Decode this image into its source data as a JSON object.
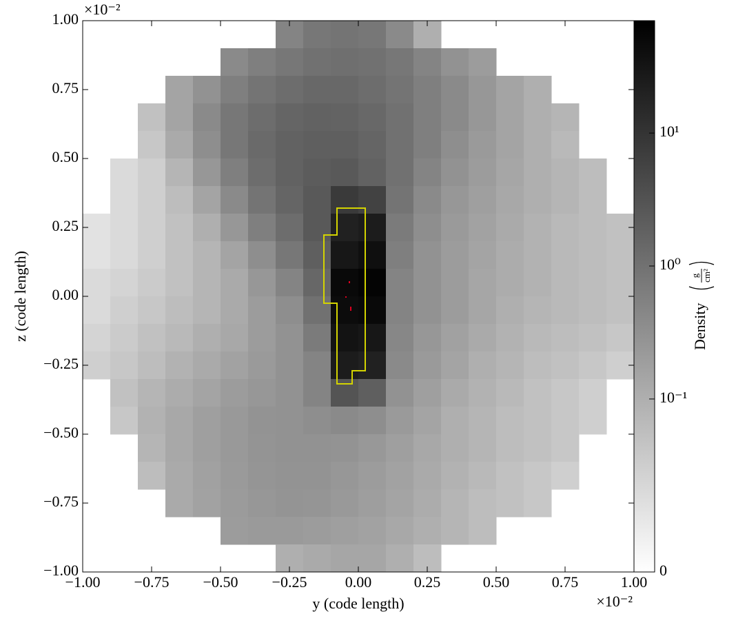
{
  "chart_data": {
    "type": "heatmap",
    "xlabel": "y  (code length)",
    "ylabel": "z  (code length)",
    "x_offset": "×10⁻²",
    "y_offset": "×10⁻²",
    "xlim": [
      -0.01,
      0.01
    ],
    "ylim": [
      -0.01,
      0.01
    ],
    "xticks": [
      {
        "value": -0.01,
        "label": "−1.00"
      },
      {
        "value": -0.0075,
        "label": "−0.75"
      },
      {
        "value": -0.005,
        "label": "−0.50"
      },
      {
        "value": -0.0025,
        "label": "−0.25"
      },
      {
        "value": 0,
        "label": "0.00"
      },
      {
        "value": 0.0025,
        "label": "0.25"
      },
      {
        "value": 0.005,
        "label": "0.50"
      },
      {
        "value": 0.0075,
        "label": "0.75"
      },
      {
        "value": 0.01,
        "label": "1.00"
      }
    ],
    "yticks": [
      {
        "value": -0.01,
        "label": "−1.00"
      },
      {
        "value": -0.0075,
        "label": "−0.75"
      },
      {
        "value": -0.005,
        "label": "−0.50"
      },
      {
        "value": -0.0025,
        "label": "−0.25"
      },
      {
        "value": 0,
        "label": "0.00"
      },
      {
        "value": 0.0025,
        "label": "0.25"
      },
      {
        "value": 0.005,
        "label": "0.50"
      },
      {
        "value": 0.0075,
        "label": "0.75"
      },
      {
        "value": 0.01,
        "label": "1.00"
      }
    ],
    "colormap": [
      "#ffffff",
      "#000000"
    ],
    "colorbar": {
      "scale": "log",
      "label": "Density",
      "units_num": "g",
      "units_den": "cm²",
      "lim": [
        0.005,
        70
      ],
      "ticks": [
        {
          "value": 0.005,
          "label": "0"
        },
        {
          "value": 0.1,
          "label": "10⁻¹"
        },
        {
          "value": 1,
          "label": "10⁰"
        },
        {
          "value": 10,
          "label": "10¹"
        }
      ]
    },
    "values": [
      [
        null,
        null,
        null,
        null,
        null,
        null,
        null,
        0.5,
        0.8,
        0.9,
        0.8,
        0.4,
        0.1,
        null,
        null,
        null,
        null,
        null,
        null,
        null
      ],
      [
        null,
        null,
        null,
        null,
        null,
        0.4,
        0.6,
        0.8,
        1.0,
        1.1,
        1.0,
        0.8,
        0.5,
        0.3,
        0.2,
        null,
        null,
        null,
        null,
        null
      ],
      [
        null,
        null,
        null,
        0.15,
        0.3,
        0.6,
        0.9,
        1.2,
        1.4,
        1.4,
        1.2,
        0.9,
        0.6,
        0.4,
        0.25,
        0.15,
        0.1,
        null,
        null,
        null
      ],
      [
        null,
        null,
        0.05,
        0.15,
        0.4,
        0.8,
        1.2,
        1.6,
        1.8,
        1.7,
        1.4,
        1.0,
        0.6,
        0.4,
        0.25,
        0.15,
        0.1,
        0.08,
        null,
        null
      ],
      [
        null,
        null,
        0.04,
        0.12,
        0.35,
        0.8,
        1.3,
        1.8,
        2.0,
        2.0,
        1.6,
        1.0,
        0.6,
        0.35,
        0.22,
        0.15,
        0.1,
        0.07,
        null,
        null
      ],
      [
        null,
        0.02,
        0.03,
        0.08,
        0.25,
        0.6,
        1.2,
        1.8,
        2.2,
        2.5,
        1.8,
        1.0,
        0.5,
        0.3,
        0.2,
        0.14,
        0.1,
        0.08,
        0.06,
        null
      ],
      [
        null,
        0.02,
        0.03,
        0.06,
        0.15,
        0.4,
        0.9,
        1.6,
        2.5,
        8,
        6,
        0.9,
        0.4,
        0.25,
        0.18,
        0.13,
        0.1,
        0.08,
        0.06,
        null
      ],
      [
        0.015,
        0.02,
        0.03,
        0.05,
        0.1,
        0.25,
        0.6,
        1.2,
        2.5,
        20,
        25,
        0.7,
        0.35,
        0.22,
        0.16,
        0.12,
        0.09,
        0.07,
        0.06,
        0.05
      ],
      [
        0.015,
        0.02,
        0.03,
        0.05,
        0.08,
        0.15,
        0.35,
        0.8,
        2.0,
        30,
        40,
        0.6,
        0.3,
        0.2,
        0.15,
        0.11,
        0.09,
        0.07,
        0.06,
        0.05
      ],
      [
        0.02,
        0.025,
        0.035,
        0.05,
        0.08,
        0.12,
        0.25,
        0.5,
        1.5,
        50,
        60,
        0.5,
        0.3,
        0.2,
        0.14,
        0.11,
        0.09,
        0.07,
        0.06,
        0.05
      ],
      [
        0.02,
        0.03,
        0.04,
        0.06,
        0.08,
        0.12,
        0.2,
        0.35,
        1.0,
        45,
        50,
        0.5,
        0.3,
        0.2,
        0.14,
        0.1,
        0.08,
        0.07,
        0.06,
        0.05
      ],
      [
        0.025,
        0.035,
        0.05,
        0.07,
        0.1,
        0.13,
        0.2,
        0.3,
        0.7,
        35,
        30,
        0.45,
        0.25,
        0.17,
        0.12,
        0.09,
        0.07,
        0.06,
        0.05,
        0.04
      ],
      [
        0.03,
        0.04,
        0.06,
        0.09,
        0.12,
        0.16,
        0.22,
        0.3,
        0.5,
        25,
        20,
        0.4,
        0.22,
        0.15,
        0.1,
        0.08,
        0.06,
        0.05,
        0.04,
        0.03
      ],
      [
        null,
        0.05,
        0.08,
        0.11,
        0.15,
        0.2,
        0.25,
        0.3,
        0.5,
        3,
        2,
        0.3,
        0.18,
        0.12,
        0.09,
        0.07,
        0.05,
        0.04,
        0.03,
        null
      ],
      [
        null,
        0.04,
        0.09,
        0.13,
        0.18,
        0.23,
        0.28,
        0.3,
        0.35,
        0.4,
        0.35,
        0.22,
        0.15,
        0.1,
        0.08,
        0.06,
        0.05,
        0.04,
        0.03,
        null
      ],
      [
        null,
        null,
        0.08,
        0.13,
        0.18,
        0.23,
        0.27,
        0.3,
        0.3,
        0.28,
        0.24,
        0.18,
        0.13,
        0.1,
        0.08,
        0.06,
        0.05,
        0.04,
        null,
        null
      ],
      [
        null,
        null,
        0.06,
        0.12,
        0.17,
        0.22,
        0.26,
        0.28,
        0.28,
        0.25,
        0.2,
        0.16,
        0.12,
        0.09,
        0.07,
        0.05,
        0.04,
        0.03,
        null,
        null
      ],
      [
        null,
        null,
        null,
        0.12,
        0.16,
        0.21,
        0.25,
        0.27,
        0.26,
        0.23,
        0.19,
        0.15,
        0.11,
        0.08,
        0.06,
        0.05,
        0.04,
        null,
        null,
        null
      ],
      [
        null,
        null,
        null,
        null,
        null,
        0.2,
        0.22,
        0.22,
        0.2,
        0.18,
        0.16,
        0.13,
        0.1,
        0.08,
        0.06,
        null,
        null,
        null,
        null,
        null
      ],
      [
        null,
        null,
        null,
        null,
        null,
        null,
        null,
        0.1,
        0.12,
        0.14,
        0.14,
        0.1,
        0.06,
        null,
        null,
        null,
        null,
        null,
        null,
        null
      ]
    ]
  }
}
